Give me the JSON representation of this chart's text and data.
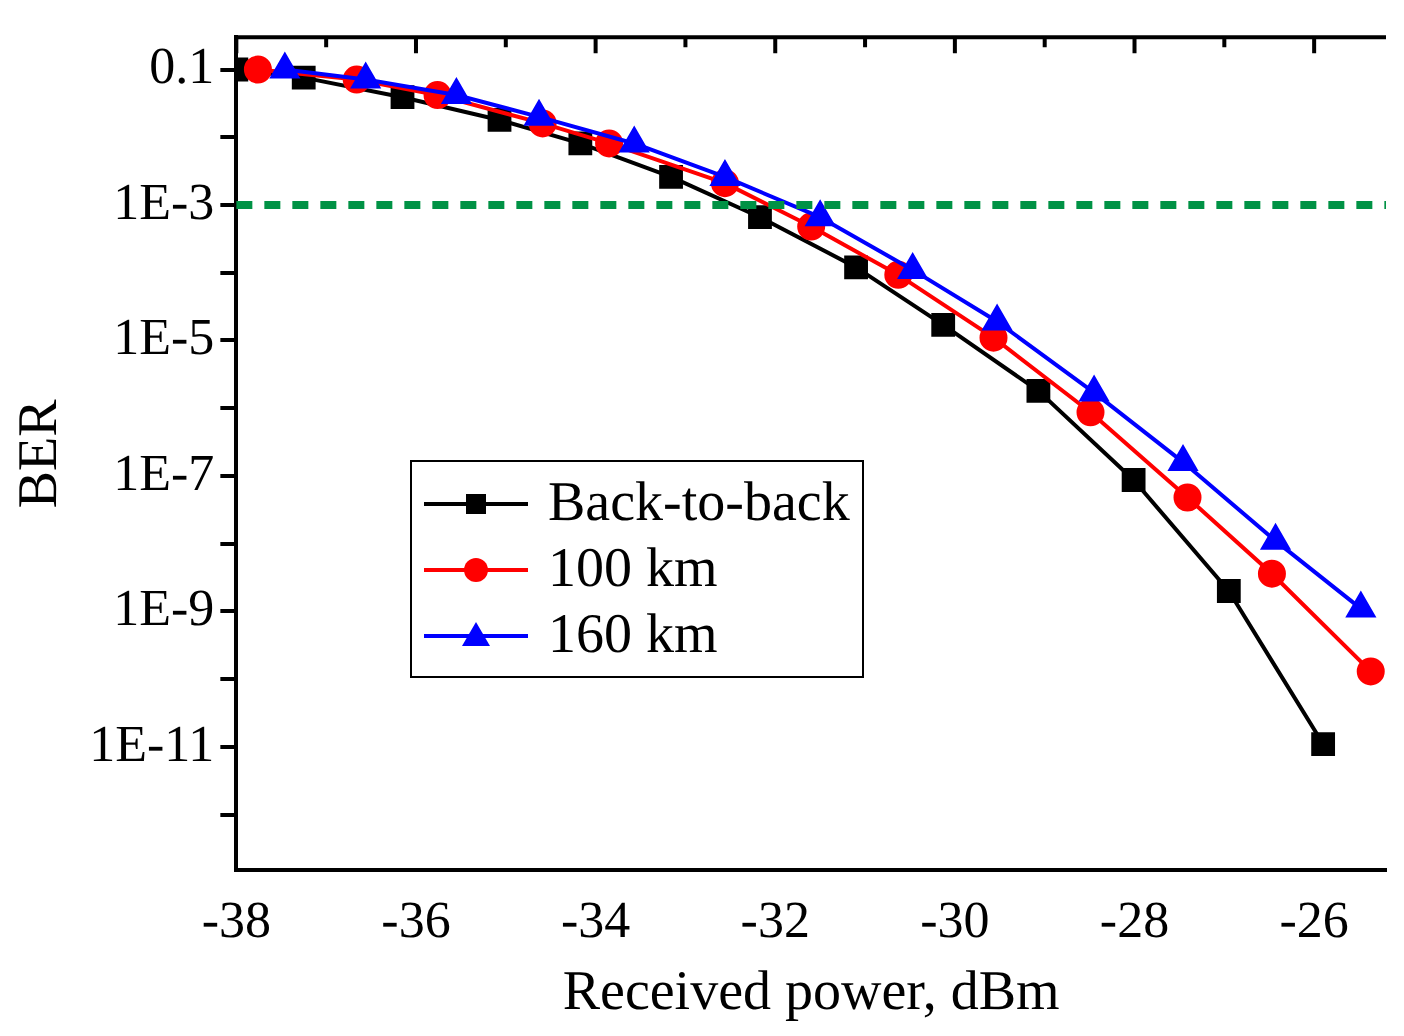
{
  "chart_data": {
    "type": "line",
    "xlabel": "Received power, dBm",
    "ylabel": "BER",
    "log": "y",
    "grid": false,
    "legend": "bottom left",
    "line_style": "solid",
    "xlim": [
      -38,
      -25.2
    ],
    "xticks": [
      -38,
      {
        "value": -37,
        "label": null
      },
      -36,
      {
        "value": -35,
        "label": null
      },
      -34,
      {
        "value": -33,
        "label": null
      },
      -32,
      {
        "value": -31,
        "label": null
      },
      -30,
      {
        "value": -29,
        "label": null
      },
      -28,
      {
        "value": -27,
        "label": null
      },
      -26
    ],
    "ylim": [
      1.5e-13,
      0.3
    ],
    "yticks": [
      0.1,
      {
        "value": 0.01,
        "label": null
      },
      {
        "value": 0.001,
        "label": "1E-3"
      },
      {
        "value": 0.0001,
        "label": null
      },
      {
        "value": 1e-05,
        "label": "1E-5"
      },
      {
        "value": 1e-06,
        "label": null
      },
      {
        "value": 1e-07,
        "label": "1E-7"
      },
      {
        "value": 1e-08,
        "label": null
      },
      {
        "value": 1e-09,
        "label": "1E-9"
      },
      {
        "value": 1e-10,
        "label": null
      },
      {
        "value": 1e-11,
        "label": "1E-11"
      },
      {
        "value": 1e-12,
        "label": null
      }
    ],
    "ref_lines": [
      {
        "axis": "y",
        "value": 0.001,
        "color": "#009245",
        "line_style": "dashed"
      }
    ],
    "series": [
      {
        "name": "Back-to-back",
        "color": "#000000",
        "marker": "square",
        "x": [
          -38,
          -37.25,
          -36.15,
          -35.07,
          -34.17,
          -33.16,
          -32.17,
          -31.1,
          -30.13,
          -29.07,
          -28.01,
          -26.95,
          -25.9
        ],
        "values": [
          0.1,
          0.076,
          0.039,
          0.018,
          0.0081,
          0.0026,
          0.00066,
          0.00012,
          1.7e-05,
          1.8e-06,
          8.7e-08,
          2e-09,
          1.1e-11
        ]
      },
      {
        "name": "100 km",
        "color": "#ff0000",
        "marker": "circle",
        "x": [
          -37.76,
          -36.66,
          -35.76,
          -34.59,
          -33.85,
          -32.56,
          -31.6,
          -30.63,
          -29.57,
          -28.49,
          -27.41,
          -26.47,
          -25.37
        ],
        "values": [
          0.1,
          0.071,
          0.042,
          0.016,
          0.0081,
          0.0021,
          0.00048,
          9.3e-05,
          1.1e-05,
          8.7e-07,
          4.8e-08,
          3.6e-09,
          1.3e-10
        ]
      },
      {
        "name": "160 km",
        "color": "#0000ff",
        "marker": "triangle",
        "x": [
          -37.46,
          -36.56,
          -35.55,
          -34.63,
          -33.57,
          -32.56,
          -31.5,
          -30.47,
          -29.53,
          -28.45,
          -27.46,
          -26.43,
          -25.48
        ],
        "values": [
          0.1,
          0.071,
          0.042,
          0.02,
          0.0081,
          0.0026,
          0.00066,
          0.00011,
          1.9e-05,
          1.7e-06,
          1.6e-07,
          1.1e-08,
          1.1e-09
        ]
      }
    ]
  }
}
